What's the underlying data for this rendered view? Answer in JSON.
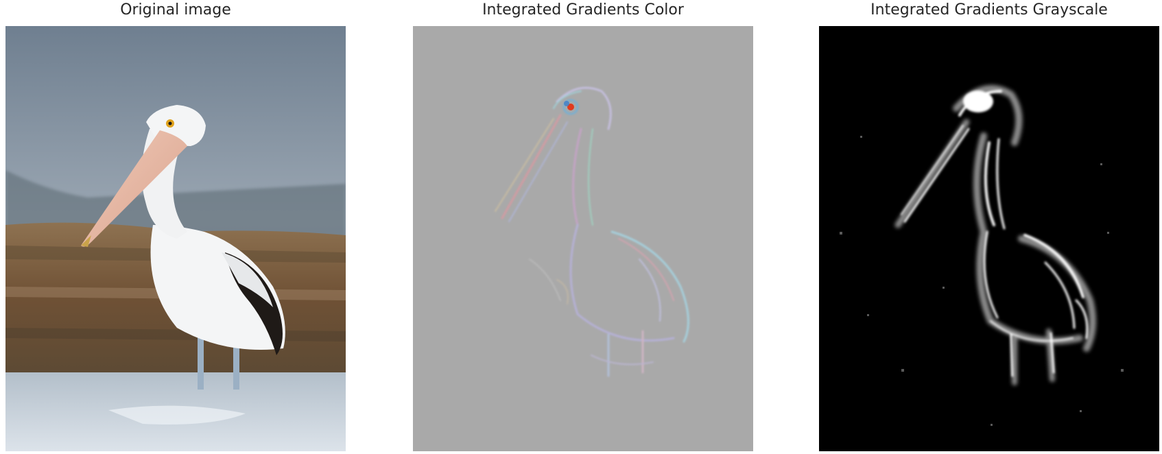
{
  "panels": [
    {
      "title": "Original image"
    },
    {
      "title": "Integrated Gradients Color"
    },
    {
      "title": "Integrated Gradients Grayscale"
    }
  ],
  "colors": {
    "background": "#ffffff",
    "title_text": "#262626",
    "ig_color_background": "#a9a9a9",
    "ig_gray_background": "#000000",
    "sky": "#7d8c9c",
    "water": "#c9d2dc",
    "rocks": "#7a5a3a",
    "beak": "#e7b9a3"
  }
}
